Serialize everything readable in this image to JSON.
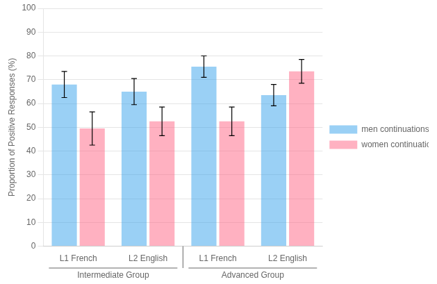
{
  "chart_data": {
    "type": "bar",
    "categories": [
      "L1 French",
      "L2 English",
      "L1 French",
      "L2 English"
    ],
    "series": [
      {
        "name": "men continuations",
        "values": [
          68,
          65,
          75.5,
          63.5
        ],
        "errors": [
          5.5,
          5.5,
          4.5,
          4.5
        ]
      },
      {
        "name": "women continuations",
        "values": [
          49.5,
          52.5,
          52.5,
          73.5
        ],
        "errors": [
          7,
          6,
          6,
          5
        ]
      }
    ],
    "ylabel": "Proportion of Positive Responses (%)",
    "annotations": [
      "Intermediate Group",
      "Advanced Group"
    ],
    "ylim": [
      0,
      100
    ],
    "yticks": [
      0,
      10,
      20,
      30,
      40,
      50,
      60,
      70,
      80,
      90,
      100
    ],
    "grid": true,
    "legend": "right"
  }
}
